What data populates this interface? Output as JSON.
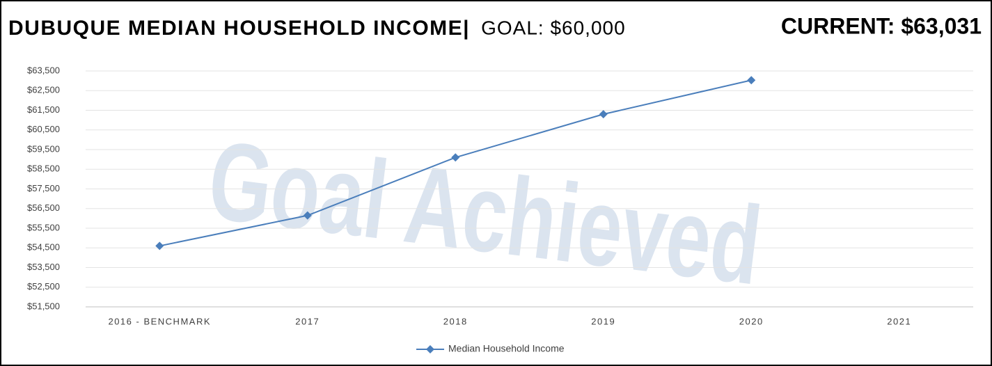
{
  "chart_data": {
    "type": "line",
    "title": "DUBUQUE MEDIAN HOUSEHOLD INCOME|",
    "goal_label": "GOAL: $60,000",
    "current_label": "CURRENT: $63,031",
    "watermark": "Goal Achieved",
    "categories": [
      "2016 - BENCHMARK",
      "2017",
      "2018",
      "2019",
      "2020",
      "2021"
    ],
    "series": [
      {
        "name": "Median Household Income",
        "color": "#4a7ebb",
        "values": [
          54600,
          56150,
          59100,
          61300,
          63031,
          null
        ]
      }
    ],
    "ylim": [
      51500,
      63500
    ],
    "yticks": [
      {
        "value": 51500,
        "label": "$51,500"
      },
      {
        "value": 52500,
        "label": "$52,500"
      },
      {
        "value": 53500,
        "label": "$53,500"
      },
      {
        "value": 54500,
        "label": "$54,500"
      },
      {
        "value": 55500,
        "label": "$55,500"
      },
      {
        "value": 56500,
        "label": "$56,500"
      },
      {
        "value": 57500,
        "label": "$57,500"
      },
      {
        "value": 58500,
        "label": "$58,500"
      },
      {
        "value": 59500,
        "label": "$59,500"
      },
      {
        "value": 60500,
        "label": "$60,500"
      },
      {
        "value": 61500,
        "label": "$61,500"
      },
      {
        "value": 62500,
        "label": "$62,500"
      },
      {
        "value": 63500,
        "label": "$63,500"
      }
    ],
    "grid": true,
    "legend": "bottom"
  }
}
